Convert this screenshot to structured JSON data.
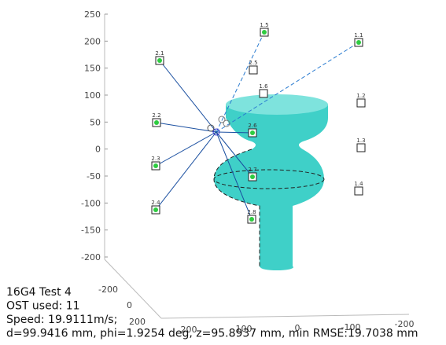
{
  "chart_data": {
    "type": "scatter3d",
    "zlim": [
      -200,
      250
    ],
    "zticks": [
      -200,
      -150,
      -100,
      -50,
      0,
      50,
      100,
      150,
      200,
      250
    ],
    "xticks": [
      200,
      100,
      0,
      -100,
      -200
    ],
    "yticks": [
      -200,
      0,
      200
    ],
    "sensors": [
      {
        "label": "2.1",
        "active": true
      },
      {
        "label": "1.5",
        "active": true
      },
      {
        "label": "1.1",
        "active": true
      },
      {
        "label": "2.5",
        "active": false
      },
      {
        "label": "1.6",
        "active": false
      },
      {
        "label": "1.2",
        "active": false
      },
      {
        "label": "2.2",
        "active": true
      },
      {
        "label": "2.6",
        "active": true
      },
      {
        "label": "1.3",
        "active": false
      },
      {
        "label": "2.3",
        "active": true
      },
      {
        "label": "2.7",
        "active": true
      },
      {
        "label": "1.4",
        "active": false
      },
      {
        "label": "2.4",
        "active": true
      },
      {
        "label": "2.8",
        "active": true
      }
    ],
    "annotations": [
      "16G4 Test 4",
      "OST used: 11",
      "Speed: 19.9111m/s;",
      "d=99.9416 mm, phi=1.9254 deg, z=95.8937 mm, min RMSE:19.7038 mm"
    ]
  }
}
